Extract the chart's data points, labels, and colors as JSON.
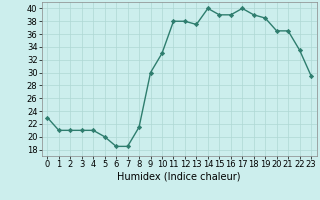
{
  "x": [
    0,
    1,
    2,
    3,
    4,
    5,
    6,
    7,
    8,
    9,
    10,
    11,
    12,
    13,
    14,
    15,
    16,
    17,
    18,
    19,
    20,
    21,
    22,
    23
  ],
  "y": [
    23,
    21,
    21,
    21,
    21,
    20,
    18.5,
    18.5,
    21.5,
    30,
    33,
    38,
    38,
    37.5,
    40,
    39,
    39,
    40,
    39,
    38.5,
    36.5,
    36.5,
    33.5,
    29.5
  ],
  "line_color": "#2e7d6e",
  "marker": "D",
  "marker_size": 2.2,
  "bg_color": "#cceeed",
  "grid_color": "#afd8d4",
  "xlabel": "Humidex (Indice chaleur)",
  "xlim": [
    -0.5,
    23.5
  ],
  "ylim": [
    17,
    41
  ],
  "yticks": [
    18,
    20,
    22,
    24,
    26,
    28,
    30,
    32,
    34,
    36,
    38,
    40
  ],
  "xticks": [
    0,
    1,
    2,
    3,
    4,
    5,
    6,
    7,
    8,
    9,
    10,
    11,
    12,
    13,
    14,
    15,
    16,
    17,
    18,
    19,
    20,
    21,
    22,
    23
  ],
  "xlabel_fontsize": 7,
  "tick_fontsize": 6,
  "linewidth": 1.0
}
